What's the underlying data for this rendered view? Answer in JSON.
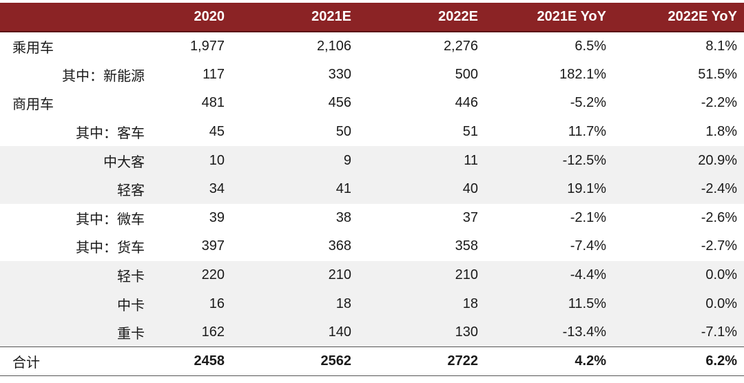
{
  "header": [
    "",
    "2020",
    "2021E",
    "2022E",
    "2021E YoY",
    "2022E YoY"
  ],
  "rows": [
    {
      "label": "乘用车",
      "level": 0,
      "shaded": false,
      "values": [
        "1,977",
        "2,106",
        "2,276",
        "6.5%",
        "8.1%"
      ]
    },
    {
      "label": "其中：新能源",
      "level": 1,
      "shaded": false,
      "values": [
        "117",
        "330",
        "500",
        "182.1%",
        "51.5%"
      ]
    },
    {
      "label": "商用车",
      "level": 0,
      "shaded": false,
      "values": [
        "481",
        "456",
        "446",
        "-5.2%",
        "-2.2%"
      ]
    },
    {
      "label": "其中：客车",
      "level": 1,
      "shaded": false,
      "values": [
        "45",
        "50",
        "51",
        "11.7%",
        "1.8%"
      ]
    },
    {
      "label": "中大客",
      "level": 2,
      "shaded": true,
      "values": [
        "10",
        "9",
        "11",
        "-12.5%",
        "20.9%"
      ]
    },
    {
      "label": "轻客",
      "level": 2,
      "shaded": true,
      "values": [
        "34",
        "41",
        "40",
        "19.1%",
        "-2.4%"
      ]
    },
    {
      "label": "其中：微车",
      "level": 1,
      "shaded": false,
      "values": [
        "39",
        "38",
        "37",
        "-2.1%",
        "-2.6%"
      ]
    },
    {
      "label": "其中：货车",
      "level": 1,
      "shaded": false,
      "values": [
        "397",
        "368",
        "358",
        "-7.4%",
        "-2.7%"
      ]
    },
    {
      "label": "轻卡",
      "level": 2,
      "shaded": true,
      "values": [
        "220",
        "210",
        "210",
        "-4.4%",
        "0.0%"
      ]
    },
    {
      "label": "中卡",
      "level": 2,
      "shaded": true,
      "values": [
        "16",
        "18",
        "18",
        "11.5%",
        "0.0%"
      ]
    },
    {
      "label": "重卡",
      "level": 2,
      "shaded": true,
      "values": [
        "162",
        "140",
        "130",
        "-13.4%",
        "-7.1%"
      ]
    }
  ],
  "total": {
    "label": "合计",
    "values": [
      "2458",
      "2562",
      "2722",
      "4.2%",
      "6.2%"
    ]
  },
  "colors": {
    "header_bg": "#8b2325",
    "header_text": "#ffffff",
    "shade": "#f1f1f1"
  }
}
